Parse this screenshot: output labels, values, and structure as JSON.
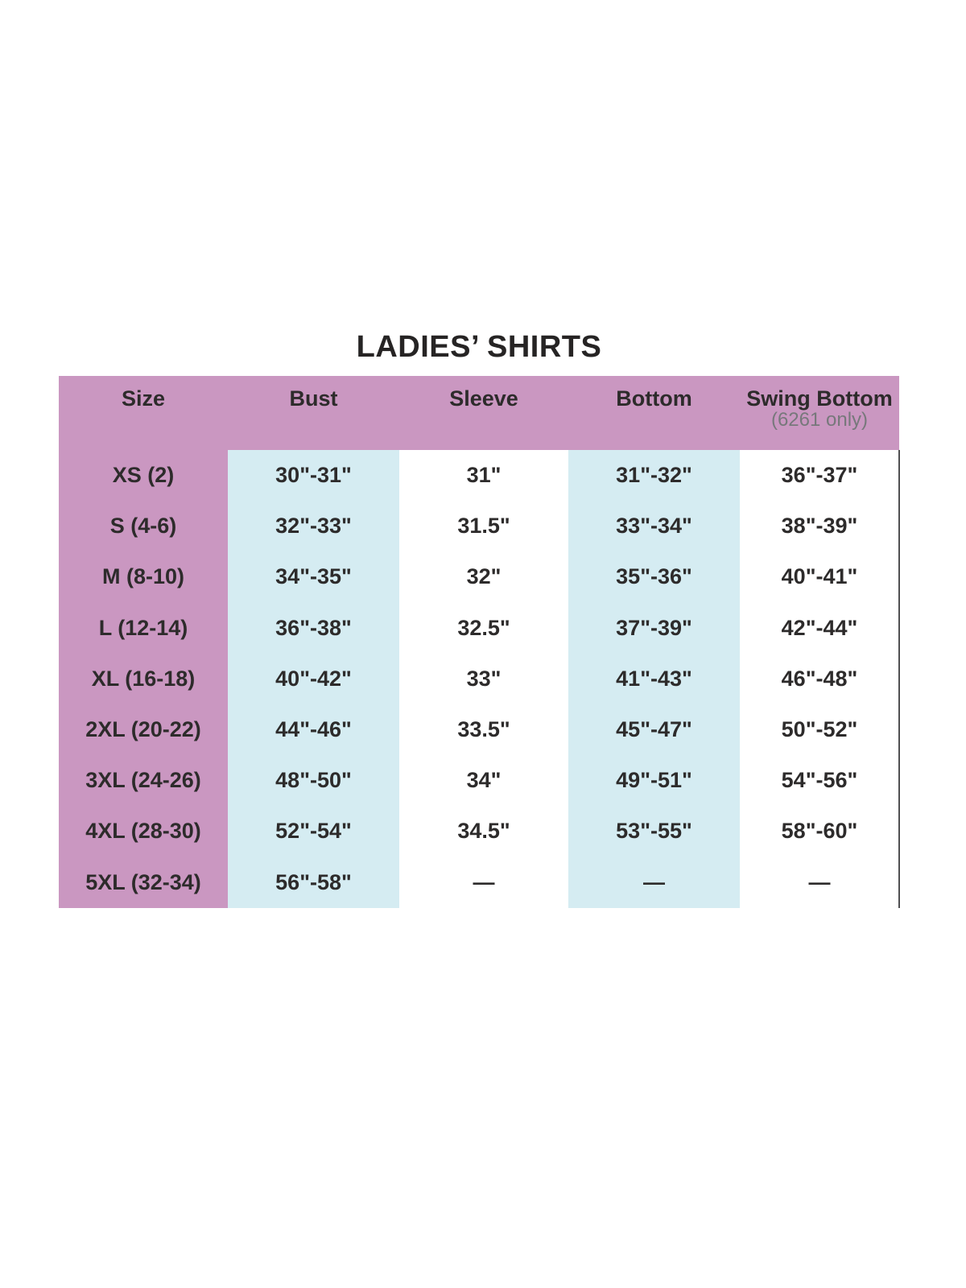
{
  "title": "LADIES’ SHIRTS",
  "table": {
    "columns": [
      {
        "label": "Size"
      },
      {
        "label": "Bust"
      },
      {
        "label": "Sleeve"
      },
      {
        "label": "Bottom"
      },
      {
        "label": "Swing Bottom",
        "sublabel": "(6261 only)"
      }
    ],
    "rows": [
      {
        "size": "XS (2)",
        "bust": "30\"-31\"",
        "sleeve": "31\"",
        "bottom": "31\"-32\"",
        "swing_bottom": "36\"-37\""
      },
      {
        "size": "S (4-6)",
        "bust": "32\"-33\"",
        "sleeve": "31.5\"",
        "bottom": "33\"-34\"",
        "swing_bottom": "38\"-39\""
      },
      {
        "size": "M (8-10)",
        "bust": "34\"-35\"",
        "sleeve": "32\"",
        "bottom": "35\"-36\"",
        "swing_bottom": "40\"-41\""
      },
      {
        "size": "L (12-14)",
        "bust": "36\"-38\"",
        "sleeve": "32.5\"",
        "bottom": "37\"-39\"",
        "swing_bottom": "42\"-44\""
      },
      {
        "size": "XL (16-18)",
        "bust": "40\"-42\"",
        "sleeve": "33\"",
        "bottom": "41\"-43\"",
        "swing_bottom": "46\"-48\""
      },
      {
        "size": "2XL (20-22)",
        "bust": "44\"-46\"",
        "sleeve": "33.5\"",
        "bottom": "45\"-47\"",
        "swing_bottom": "50\"-52\""
      },
      {
        "size": "3XL (24-26)",
        "bust": "48\"-50\"",
        "sleeve": "34\"",
        "bottom": "49\"-51\"",
        "swing_bottom": "54\"-56\""
      },
      {
        "size": "4XL (28-30)",
        "bust": "52\"-54\"",
        "sleeve": "34.5\"",
        "bottom": "53\"-55\"",
        "swing_bottom": "58\"-60\""
      },
      {
        "size": "5XL (32-34)",
        "bust": "56\"-58\"",
        "sleeve": "—",
        "bottom": "—",
        "swing_bottom": "—"
      }
    ]
  },
  "colors": {
    "header_pink": "#ca97c1",
    "accent_blue": "#d5ecf2",
    "text_dark": "#2d2b2b",
    "subtext_gray": "#77787b",
    "border_gray": "#4f4f51"
  }
}
